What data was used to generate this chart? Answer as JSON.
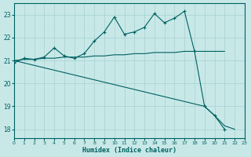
{
  "xlabel": "Humidex (Indice chaleur)",
  "bg_color": "#c8e8e8",
  "grid_color": "#a8d0d0",
  "line_color": "#006060",
  "xlim": [
    0,
    23
  ],
  "ylim": [
    17.6,
    23.5
  ],
  "yticks": [
    18,
    19,
    20,
    21,
    22,
    23
  ],
  "xticks": [
    0,
    1,
    2,
    3,
    4,
    5,
    6,
    7,
    8,
    9,
    10,
    11,
    12,
    13,
    14,
    15,
    16,
    17,
    18,
    19,
    20,
    21,
    22,
    23
  ],
  "line1_x": [
    0,
    1,
    2,
    3,
    4,
    5,
    6,
    7,
    8,
    9,
    10,
    11,
    12,
    13,
    14,
    15,
    16,
    17,
    18,
    19,
    20,
    21,
    22
  ],
  "line1_y": [
    20.9,
    21.1,
    21.05,
    21.15,
    21.55,
    21.2,
    21.1,
    21.3,
    21.85,
    22.25,
    22.9,
    22.15,
    22.25,
    22.45,
    23.05,
    22.65,
    22.85,
    23.15,
    21.4,
    19.0,
    18.6,
    18.0,
    null
  ],
  "line2_x": [
    0,
    1,
    2,
    3,
    4,
    5,
    6,
    7,
    8,
    9,
    10,
    11,
    12,
    13,
    14,
    15,
    16,
    17,
    18,
    19,
    20,
    21
  ],
  "line2_y": [
    21.0,
    21.05,
    21.05,
    21.1,
    21.1,
    21.15,
    21.15,
    21.15,
    21.2,
    21.2,
    21.25,
    21.25,
    21.3,
    21.3,
    21.35,
    21.35,
    21.35,
    21.4,
    21.4,
    21.4,
    21.4,
    21.4
  ],
  "line3_x": [
    0,
    19,
    20,
    21,
    22
  ],
  "line3_y": [
    21.0,
    19.0,
    18.6,
    18.15,
    18.0
  ]
}
